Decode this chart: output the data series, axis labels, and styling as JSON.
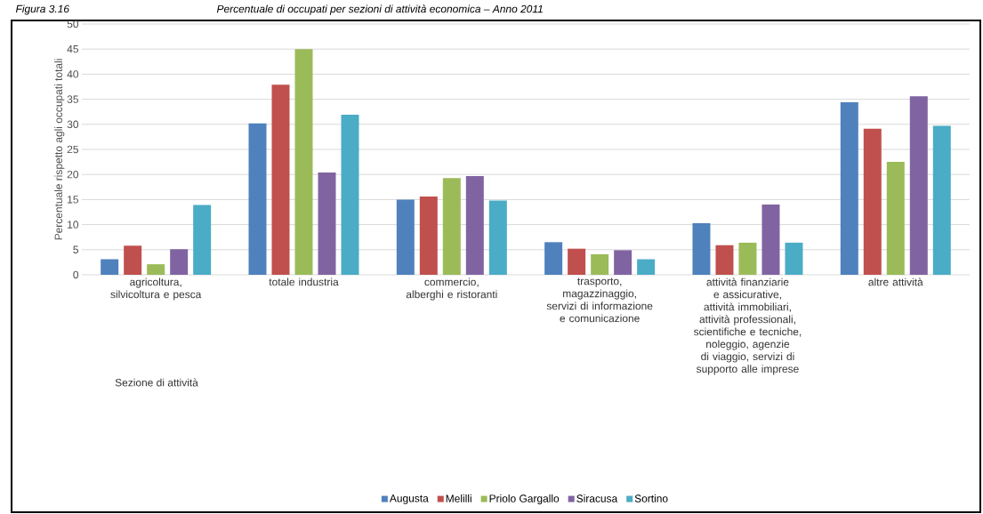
{
  "chart_data": {
    "type": "bar",
    "title": "Percentuale di occupati per sezioni di attività economica – Anno 2011",
    "annotations": [
      "Figura 3.16"
    ],
    "xlabel": "Sezione di attività",
    "ylabel": "Percentuale rispetto agli occupati totali",
    "categories": [
      "agricoltura, silvicoltura e pesca",
      "totale industria",
      "commercio, alberghi e ristoranti",
      "trasporto, magazzinaggio, servizi di informazione e comunicazione",
      "attività finanziarie e assicurative, attività immobiliari, attività professionali, scientifiche e tecniche, noleggio, agenzie di viaggio, servizi di supporto alle imprese",
      "altre attività"
    ],
    "series": [
      {
        "name": "Augusta",
        "color": "#4f81bd",
        "values": [
          3.1,
          30.2,
          15.0,
          6.5,
          10.3,
          34.4
        ]
      },
      {
        "name": "Melilli",
        "color": "#c0504d",
        "values": [
          5.8,
          37.9,
          15.6,
          5.2,
          5.9,
          29.1
        ]
      },
      {
        "name": "Priolo Gargallo",
        "color": "#9bbb59",
        "values": [
          2.1,
          45.0,
          19.3,
          4.1,
          6.4,
          22.5
        ]
      },
      {
        "name": "Siracusa",
        "color": "#8064a2",
        "values": [
          5.1,
          20.4,
          19.7,
          4.9,
          14.0,
          35.6
        ]
      },
      {
        "name": "Sortino",
        "color": "#4bacc6",
        "values": [
          13.9,
          31.9,
          14.8,
          3.1,
          6.4,
          29.7
        ]
      }
    ],
    "ylim": [
      0,
      50
    ],
    "yticks": [
      0,
      5,
      10,
      15,
      20,
      25,
      30,
      35,
      40,
      45,
      50
    ],
    "grid": "y",
    "legend": "bottom"
  }
}
